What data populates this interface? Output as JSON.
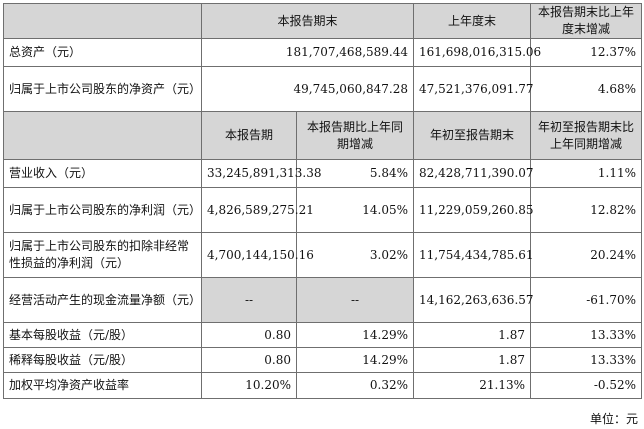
{
  "header1": {
    "blank": "",
    "col1": "本报告期末",
    "col2": "上年度末",
    "col3": "本报告期末比上年度末增减"
  },
  "balance_rows": [
    {
      "label": "总资产（元）",
      "v1": "181,707,468,589.44",
      "v2": "161,698,016,315.06",
      "v3": "12.37%"
    },
    {
      "label": "归属于上市公司股东的净资产（元）",
      "v1": "49,745,060,847.28",
      "v2": "47,521,376,091.77",
      "v3": "4.68%"
    }
  ],
  "header2": {
    "col1": "本报告期",
    "col2": "本报告期比上年同期增减",
    "col3": "年初至报告期末",
    "col4": "年初至报告期末比上年同期增减"
  },
  "income_rows": [
    {
      "label": "营业收入（元）",
      "v1": "33,245,891,313.38",
      "v2": "5.84%",
      "v3": "82,428,711,390.07",
      "v4": "1.11%"
    },
    {
      "label": "归属于上市公司股东的净利润（元）",
      "v1": "4,826,589,275.21",
      "v2": "14.05%",
      "v3": "11,229,059,260.85",
      "v4": "12.82%"
    },
    {
      "label": "归属于上市公司股东的扣除非经常性损益的净利润（元）",
      "v1": "4,700,144,150.16",
      "v2": "3.02%",
      "v3": "11,754,434,785.61",
      "v4": "20.24%"
    },
    {
      "label": "经营活动产生的现金流量净额（元）",
      "v1": "--",
      "v2": "--",
      "v3": "14,162,263,636.57",
      "v4": "-61.70%"
    },
    {
      "label": "基本每股收益（元/股）",
      "v1": "0.80",
      "v2": "14.29%",
      "v3": "1.87",
      "v4": "13.33%"
    },
    {
      "label": "稀释每股收益（元/股）",
      "v1": "0.80",
      "v2": "14.29%",
      "v3": "1.87",
      "v4": "13.33%"
    },
    {
      "label": "加权平均净资产收益率",
      "v1": "10.20%",
      "v2": "0.32%",
      "v3": "21.13%",
      "v4": "-0.52%"
    }
  ],
  "unit_note": "单位：元"
}
